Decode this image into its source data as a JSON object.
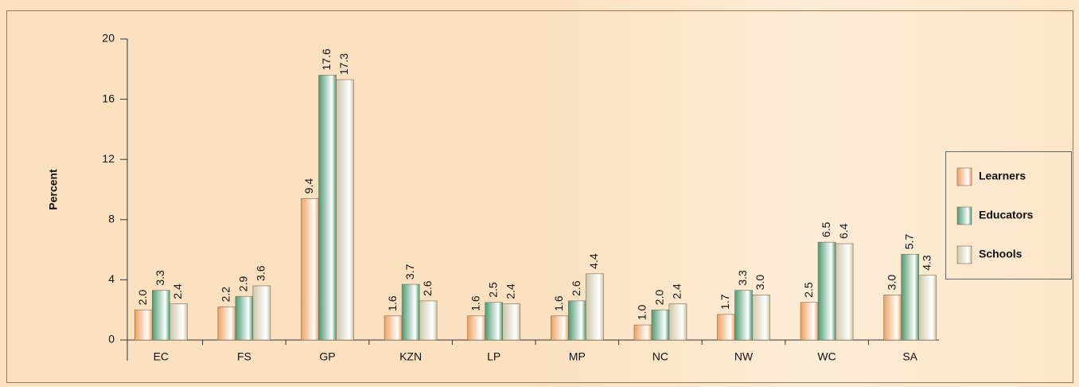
{
  "chart_data": {
    "type": "bar",
    "ylabel": "Percent",
    "categories": [
      "EC",
      "FS",
      "GP",
      "KZN",
      "LP",
      "MP",
      "NC",
      "NW",
      "WC",
      "SA"
    ],
    "series": [
      {
        "name": "Learners",
        "color": "#f0a060",
        "values": [
          2.0,
          2.2,
          9.4,
          1.6,
          1.6,
          1.6,
          1.0,
          1.7,
          2.5,
          3.0
        ],
        "value_labels": [
          "2.0",
          "2.2",
          "9.4",
          "1.6",
          "1.6",
          "1.6",
          "1.0",
          "1.7",
          "2.5",
          "3.0"
        ]
      },
      {
        "name": "Educators",
        "color": "#4e9a72",
        "values": [
          3.3,
          2.9,
          17.6,
          3.7,
          2.5,
          2.6,
          2.0,
          3.3,
          6.5,
          5.7
        ],
        "value_labels": [
          "3.3",
          "2.9",
          "17.6",
          "3.7",
          "2.5",
          "2.6",
          "2.0",
          "3.3",
          "6.5",
          "5.7"
        ]
      },
      {
        "name": "Schools",
        "color": "#cfc7a8",
        "values": [
          2.4,
          3.6,
          17.3,
          2.6,
          2.4,
          4.4,
          2.4,
          3.0,
          6.4,
          4.3
        ],
        "value_labels": [
          "2.4",
          "3.6",
          "17.3",
          "2.6",
          "2.4",
          "4.4",
          "2.4",
          "3.0",
          "6.4",
          "4.3"
        ]
      }
    ],
    "ylim": [
      0,
      20
    ],
    "yticks": [
      0,
      4,
      8,
      12,
      16,
      20
    ],
    "grid": false,
    "legend": "right"
  }
}
